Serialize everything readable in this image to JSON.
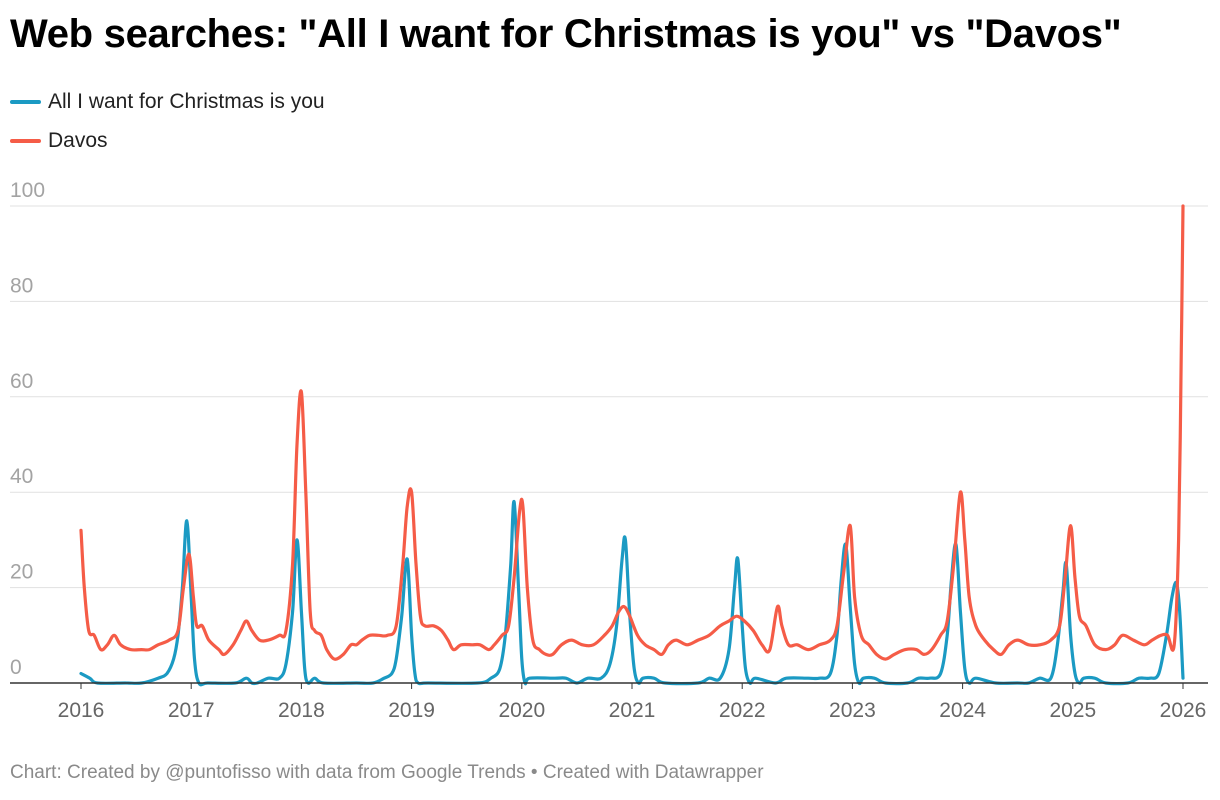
{
  "title": "Web searches: \"All I want for Christmas is you\" vs \"Davos\"",
  "source": "Chart: Created by @puntofisso with data from Google Trends • Created with Datawrapper",
  "chart_data": {
    "type": "line",
    "title": "Web searches: \"All I want for Christmas is you\" vs \"Davos\"",
    "xlabel": "",
    "ylabel": "",
    "xlim": [
      2016,
      2026
    ],
    "ylim": [
      0,
      100
    ],
    "grid": true,
    "legend_position": "top-left",
    "x_ticks": [
      2016,
      2017,
      2018,
      2019,
      2020,
      2021,
      2022,
      2023,
      2024,
      2025,
      2026
    ],
    "x_tick_labels": [
      "2016",
      "2017",
      "2018",
      "2019",
      "2020",
      "2021",
      "2022",
      "2023",
      "2024",
      "2025",
      "2026"
    ],
    "y_ticks": [
      0,
      20,
      40,
      60,
      80,
      100
    ],
    "y_tick_labels": [
      "0",
      "20",
      "40",
      "60",
      "80",
      "100"
    ],
    "series": [
      {
        "name": "All I want for Christmas is you",
        "color": "#1b9ac3",
        "points": [
          [
            2016.0,
            2
          ],
          [
            2016.08,
            1
          ],
          [
            2016.15,
            0
          ],
          [
            2016.4,
            0
          ],
          [
            2016.55,
            0
          ],
          [
            2016.7,
            1
          ],
          [
            2016.78,
            2
          ],
          [
            2016.84,
            5
          ],
          [
            2016.88,
            10
          ],
          [
            2016.92,
            20
          ],
          [
            2016.96,
            34
          ],
          [
            2017.0,
            18
          ],
          [
            2017.03,
            5
          ],
          [
            2017.07,
            0
          ],
          [
            2017.15,
            0
          ],
          [
            2017.4,
            0
          ],
          [
            2017.5,
            1
          ],
          [
            2017.55,
            0
          ],
          [
            2017.6,
            0
          ],
          [
            2017.7,
            1
          ],
          [
            2017.8,
            1
          ],
          [
            2017.86,
            4
          ],
          [
            2017.92,
            15
          ],
          [
            2017.96,
            30
          ],
          [
            2018.0,
            15
          ],
          [
            2018.03,
            3
          ],
          [
            2018.06,
            0
          ],
          [
            2018.12,
            1
          ],
          [
            2018.2,
            0
          ],
          [
            2018.5,
            0
          ],
          [
            2018.65,
            0
          ],
          [
            2018.75,
            1
          ],
          [
            2018.82,
            2
          ],
          [
            2018.86,
            5
          ],
          [
            2018.91,
            14
          ],
          [
            2018.96,
            26
          ],
          [
            2019.0,
            10
          ],
          [
            2019.03,
            2
          ],
          [
            2019.06,
            0
          ],
          [
            2019.15,
            0
          ],
          [
            2019.6,
            0
          ],
          [
            2019.72,
            1
          ],
          [
            2019.8,
            3
          ],
          [
            2019.85,
            10
          ],
          [
            2019.9,
            25
          ],
          [
            2019.93,
            38
          ],
          [
            2019.97,
            20
          ],
          [
            2020.0,
            5
          ],
          [
            2020.03,
            0
          ],
          [
            2020.07,
            1
          ],
          [
            2020.3,
            1
          ],
          [
            2020.4,
            1
          ],
          [
            2020.5,
            0
          ],
          [
            2020.6,
            1
          ],
          [
            2020.72,
            1
          ],
          [
            2020.8,
            4
          ],
          [
            2020.86,
            12
          ],
          [
            2020.91,
            26
          ],
          [
            2020.94,
            30
          ],
          [
            2020.98,
            14
          ],
          [
            2021.02,
            3
          ],
          [
            2021.06,
            0
          ],
          [
            2021.1,
            1
          ],
          [
            2021.2,
            1
          ],
          [
            2021.3,
            0
          ],
          [
            2021.6,
            0
          ],
          [
            2021.7,
            1
          ],
          [
            2021.8,
            1
          ],
          [
            2021.88,
            7
          ],
          [
            2021.93,
            20
          ],
          [
            2021.96,
            26
          ],
          [
            2022.0,
            12
          ],
          [
            2022.03,
            3
          ],
          [
            2022.07,
            0
          ],
          [
            2022.12,
            1
          ],
          [
            2022.3,
            0
          ],
          [
            2022.4,
            1
          ],
          [
            2022.6,
            1
          ],
          [
            2022.7,
            1
          ],
          [
            2022.8,
            2
          ],
          [
            2022.86,
            10
          ],
          [
            2022.9,
            22
          ],
          [
            2022.94,
            29
          ],
          [
            2022.98,
            16
          ],
          [
            2023.02,
            4
          ],
          [
            2023.06,
            0
          ],
          [
            2023.1,
            1
          ],
          [
            2023.2,
            1
          ],
          [
            2023.3,
            0
          ],
          [
            2023.5,
            0
          ],
          [
            2023.6,
            1
          ],
          [
            2023.7,
            1
          ],
          [
            2023.8,
            2
          ],
          [
            2023.86,
            10
          ],
          [
            2023.9,
            22
          ],
          [
            2023.94,
            29
          ],
          [
            2023.98,
            15
          ],
          [
            2024.02,
            3
          ],
          [
            2024.06,
            0
          ],
          [
            2024.12,
            1
          ],
          [
            2024.3,
            0
          ],
          [
            2024.5,
            0
          ],
          [
            2024.6,
            0
          ],
          [
            2024.7,
            1
          ],
          [
            2024.8,
            1
          ],
          [
            2024.86,
            8
          ],
          [
            2024.91,
            19
          ],
          [
            2024.94,
            25
          ],
          [
            2024.98,
            10
          ],
          [
            2025.02,
            2
          ],
          [
            2025.06,
            0
          ],
          [
            2025.1,
            1
          ],
          [
            2025.2,
            1
          ],
          [
            2025.3,
            0
          ],
          [
            2025.5,
            0
          ],
          [
            2025.6,
            1
          ],
          [
            2025.7,
            1
          ],
          [
            2025.78,
            2
          ],
          [
            2025.85,
            10
          ],
          [
            2025.9,
            18
          ],
          [
            2025.94,
            21
          ],
          [
            2025.97,
            15
          ],
          [
            2026.0,
            1
          ]
        ]
      },
      {
        "name": "Davos",
        "color": "#f55c47",
        "points": [
          [
            2016.0,
            32
          ],
          [
            2016.03,
            20
          ],
          [
            2016.07,
            11
          ],
          [
            2016.12,
            10
          ],
          [
            2016.18,
            7
          ],
          [
            2016.24,
            8
          ],
          [
            2016.3,
            10
          ],
          [
            2016.36,
            8
          ],
          [
            2016.45,
            7
          ],
          [
            2016.55,
            7
          ],
          [
            2016.62,
            7
          ],
          [
            2016.7,
            8
          ],
          [
            2016.8,
            9
          ],
          [
            2016.88,
            11
          ],
          [
            2016.93,
            20
          ],
          [
            2016.98,
            27
          ],
          [
            2017.02,
            18
          ],
          [
            2017.05,
            12
          ],
          [
            2017.1,
            12
          ],
          [
            2017.16,
            9
          ],
          [
            2017.25,
            7
          ],
          [
            2017.3,
            6
          ],
          [
            2017.38,
            8
          ],
          [
            2017.45,
            11
          ],
          [
            2017.5,
            13
          ],
          [
            2017.55,
            11
          ],
          [
            2017.62,
            9
          ],
          [
            2017.7,
            9
          ],
          [
            2017.8,
            10
          ],
          [
            2017.86,
            11
          ],
          [
            2017.92,
            25
          ],
          [
            2017.96,
            50
          ],
          [
            2018.0,
            61
          ],
          [
            2018.04,
            40
          ],
          [
            2018.08,
            15
          ],
          [
            2018.12,
            11
          ],
          [
            2018.18,
            10
          ],
          [
            2018.23,
            7
          ],
          [
            2018.3,
            5
          ],
          [
            2018.38,
            6
          ],
          [
            2018.45,
            8
          ],
          [
            2018.5,
            8
          ],
          [
            2018.55,
            9
          ],
          [
            2018.62,
            10
          ],
          [
            2018.7,
            10
          ],
          [
            2018.78,
            10
          ],
          [
            2018.86,
            12
          ],
          [
            2018.92,
            25
          ],
          [
            2018.96,
            37
          ],
          [
            2019.0,
            40
          ],
          [
            2019.04,
            25
          ],
          [
            2019.08,
            14
          ],
          [
            2019.12,
            12
          ],
          [
            2019.2,
            12
          ],
          [
            2019.27,
            11
          ],
          [
            2019.33,
            9
          ],
          [
            2019.38,
            7
          ],
          [
            2019.45,
            8
          ],
          [
            2019.55,
            8
          ],
          [
            2019.62,
            8
          ],
          [
            2019.7,
            7
          ],
          [
            2019.75,
            8
          ],
          [
            2019.82,
            10
          ],
          [
            2019.88,
            12
          ],
          [
            2019.93,
            22
          ],
          [
            2019.98,
            36
          ],
          [
            2020.01,
            37
          ],
          [
            2020.05,
            20
          ],
          [
            2020.1,
            9
          ],
          [
            2020.16,
            7
          ],
          [
            2020.22,
            6
          ],
          [
            2020.28,
            6
          ],
          [
            2020.36,
            8
          ],
          [
            2020.45,
            9
          ],
          [
            2020.55,
            8
          ],
          [
            2020.65,
            8
          ],
          [
            2020.75,
            10
          ],
          [
            2020.82,
            12
          ],
          [
            2020.88,
            15
          ],
          [
            2020.93,
            16
          ],
          [
            2020.98,
            14
          ],
          [
            2021.05,
            10
          ],
          [
            2021.12,
            8
          ],
          [
            2021.2,
            7
          ],
          [
            2021.27,
            6
          ],
          [
            2021.33,
            8
          ],
          [
            2021.4,
            9
          ],
          [
            2021.5,
            8
          ],
          [
            2021.6,
            9
          ],
          [
            2021.7,
            10
          ],
          [
            2021.8,
            12
          ],
          [
            2021.88,
            13
          ],
          [
            2021.95,
            14
          ],
          [
            2022.02,
            13
          ],
          [
            2022.1,
            11
          ],
          [
            2022.18,
            8
          ],
          [
            2022.25,
            7
          ],
          [
            2022.32,
            16
          ],
          [
            2022.36,
            12
          ],
          [
            2022.42,
            8
          ],
          [
            2022.5,
            8
          ],
          [
            2022.6,
            7
          ],
          [
            2022.7,
            8
          ],
          [
            2022.8,
            9
          ],
          [
            2022.86,
            12
          ],
          [
            2022.92,
            23
          ],
          [
            2022.98,
            33
          ],
          [
            2023.02,
            18
          ],
          [
            2023.08,
            10
          ],
          [
            2023.15,
            8
          ],
          [
            2023.22,
            6
          ],
          [
            2023.3,
            5
          ],
          [
            2023.38,
            6
          ],
          [
            2023.48,
            7
          ],
          [
            2023.58,
            7
          ],
          [
            2023.65,
            6
          ],
          [
            2023.72,
            7
          ],
          [
            2023.8,
            10
          ],
          [
            2023.86,
            13
          ],
          [
            2023.92,
            25
          ],
          [
            2023.98,
            40
          ],
          [
            2024.02,
            30
          ],
          [
            2024.06,
            18
          ],
          [
            2024.12,
            12
          ],
          [
            2024.2,
            9
          ],
          [
            2024.28,
            7
          ],
          [
            2024.35,
            6
          ],
          [
            2024.42,
            8
          ],
          [
            2024.5,
            9
          ],
          [
            2024.6,
            8
          ],
          [
            2024.7,
            8
          ],
          [
            2024.8,
            9
          ],
          [
            2024.88,
            12
          ],
          [
            2024.93,
            22
          ],
          [
            2024.98,
            33
          ],
          [
            2025.02,
            22
          ],
          [
            2025.06,
            14
          ],
          [
            2025.12,
            12
          ],
          [
            2025.2,
            8
          ],
          [
            2025.3,
            7
          ],
          [
            2025.38,
            8
          ],
          [
            2025.45,
            10
          ],
          [
            2025.55,
            9
          ],
          [
            2025.65,
            8
          ],
          [
            2025.72,
            9
          ],
          [
            2025.8,
            10
          ],
          [
            2025.86,
            10
          ],
          [
            2025.92,
            8
          ],
          [
            2025.96,
            30
          ],
          [
            2025.985,
            70
          ],
          [
            2026.0,
            100
          ]
        ]
      }
    ]
  }
}
